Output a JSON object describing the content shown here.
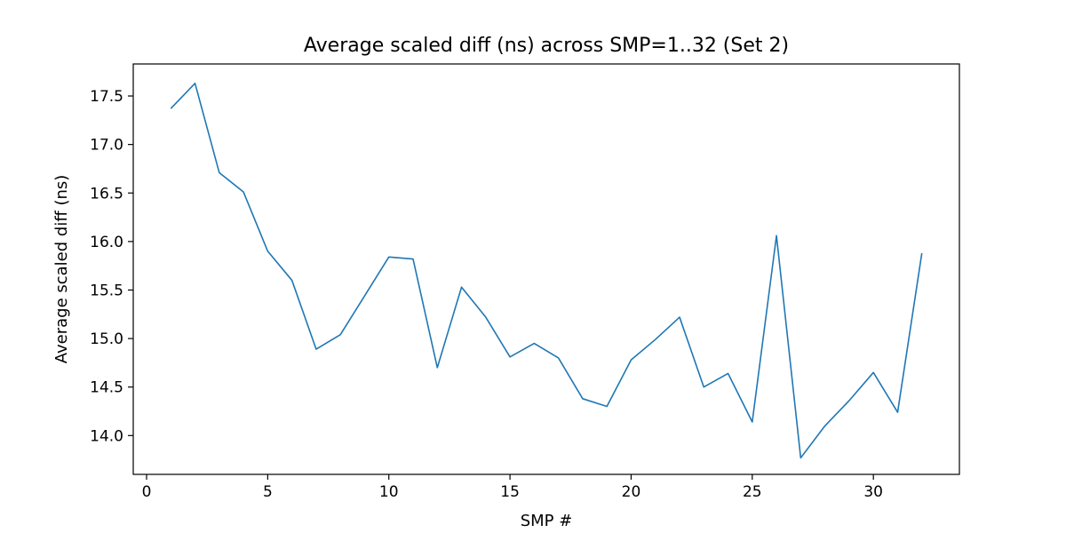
{
  "chart_data": {
    "type": "line",
    "title": "Average scaled diff (ns) across SMP=1..32 (Set 2)",
    "xlabel": "SMP #",
    "ylabel": "Average scaled diff (ns)",
    "xlim": [
      -0.55,
      33.55
    ],
    "ylim": [
      13.6,
      17.83
    ],
    "xticks": [
      0,
      5,
      10,
      15,
      20,
      25,
      30
    ],
    "xtick_labels": [
      "0",
      "5",
      "10",
      "15",
      "20",
      "25",
      "30"
    ],
    "yticks": [
      14.0,
      14.5,
      15.0,
      15.5,
      16.0,
      16.5,
      17.0,
      17.5
    ],
    "ytick_labels": [
      "14.0",
      "14.5",
      "15.0",
      "15.5",
      "16.0",
      "16.5",
      "17.0",
      "17.5"
    ],
    "grid": false,
    "series": [
      {
        "color": "#1f77b4",
        "x": [
          1,
          2,
          3,
          4,
          5,
          6,
          7,
          8,
          9,
          10,
          11,
          12,
          13,
          14,
          15,
          16,
          17,
          18,
          19,
          20,
          21,
          22,
          23,
          24,
          25,
          26,
          27,
          28,
          29,
          30,
          31,
          32
        ],
        "y": [
          17.37,
          17.63,
          16.71,
          16.51,
          15.9,
          15.6,
          14.89,
          15.04,
          15.44,
          15.84,
          15.82,
          14.7,
          15.53,
          15.22,
          14.81,
          14.95,
          14.8,
          14.38,
          14.3,
          14.78,
          14.99,
          15.22,
          14.5,
          14.64,
          14.14,
          16.06,
          13.77,
          14.1,
          14.36,
          14.65,
          14.24,
          15.88
        ]
      }
    ]
  }
}
